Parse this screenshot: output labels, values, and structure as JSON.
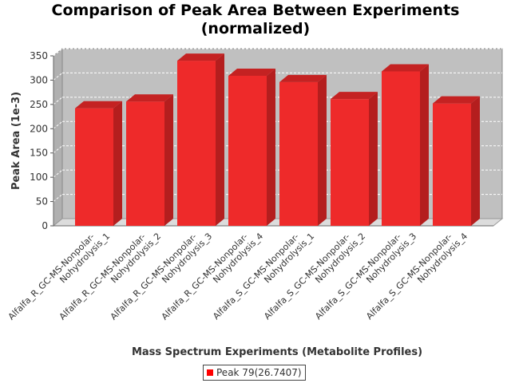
{
  "chart_data": {
    "type": "bar",
    "title_lines": [
      "Comparison of Peak Area Between Experiments",
      "(normalized)"
    ],
    "xlabel": "Mass Spectrum Experiments (Metabolite Profiles)",
    "ylabel": "Peak Area (1e-3)",
    "ylim": [
      0,
      350
    ],
    "yticks": [
      0,
      50,
      100,
      150,
      200,
      250,
      300,
      350
    ],
    "grid": true,
    "legend_placement": "bottom",
    "categories": [
      [
        "Alfalfa_R_GC-MS-Nonpolar-",
        "Nohydrolysis_1"
      ],
      [
        "Alfalfa_R_GC-MS-Nonpolar-",
        "Nohydrolysis_2"
      ],
      [
        "Alfalfa_R_GC-MS-Nonpolar-",
        "Nohydrolysis_3"
      ],
      [
        "Alfalfa_R_GC-MS-Nonpolar-",
        "Nohydrolysis_4"
      ],
      [
        "Alfalfa_S_GC-MS-Nonpolar-",
        "Nohydrolysis_1"
      ],
      [
        "Alfalfa_S_GC-MS-Nonpolar-",
        "Nohydrolysis_2"
      ],
      [
        "Alfalfa_S_GC-MS-Nonpolar-",
        "Nohydrolysis_3"
      ],
      [
        "Alfalfa_S_GC-MS-Nonpolar-",
        "Nohydrolysis_4"
      ]
    ],
    "series": [
      {
        "name": "Peak 79(26.7407)",
        "color": "#ff0000",
        "values": [
          242,
          256,
          340,
          309,
          296,
          261,
          318,
          252
        ]
      }
    ]
  }
}
